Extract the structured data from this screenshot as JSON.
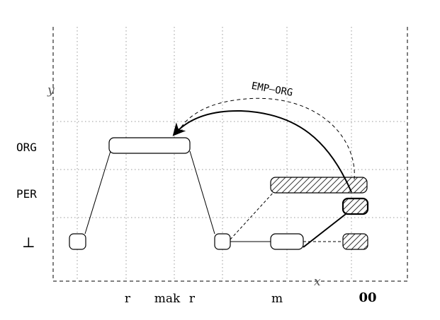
{
  "axes": {
    "y_label": "y",
    "x_label": "x"
  },
  "rows": {
    "org": "ORG",
    "per": "PER",
    "bottom": "⊥"
  },
  "tokens": [
    {
      "label": "r",
      "bold": false
    },
    {
      "label": "mak",
      "bold": false
    },
    {
      "label": "r",
      "bold": false
    },
    {
      "label": "m",
      "bold": false
    },
    {
      "label": "00",
      "bold": true
    }
  ],
  "relation": {
    "label": "EMP–ORG"
  },
  "colors": {
    "stroke": "#000000",
    "grid": "#9a9a9a",
    "hatch": "#000000"
  }
}
